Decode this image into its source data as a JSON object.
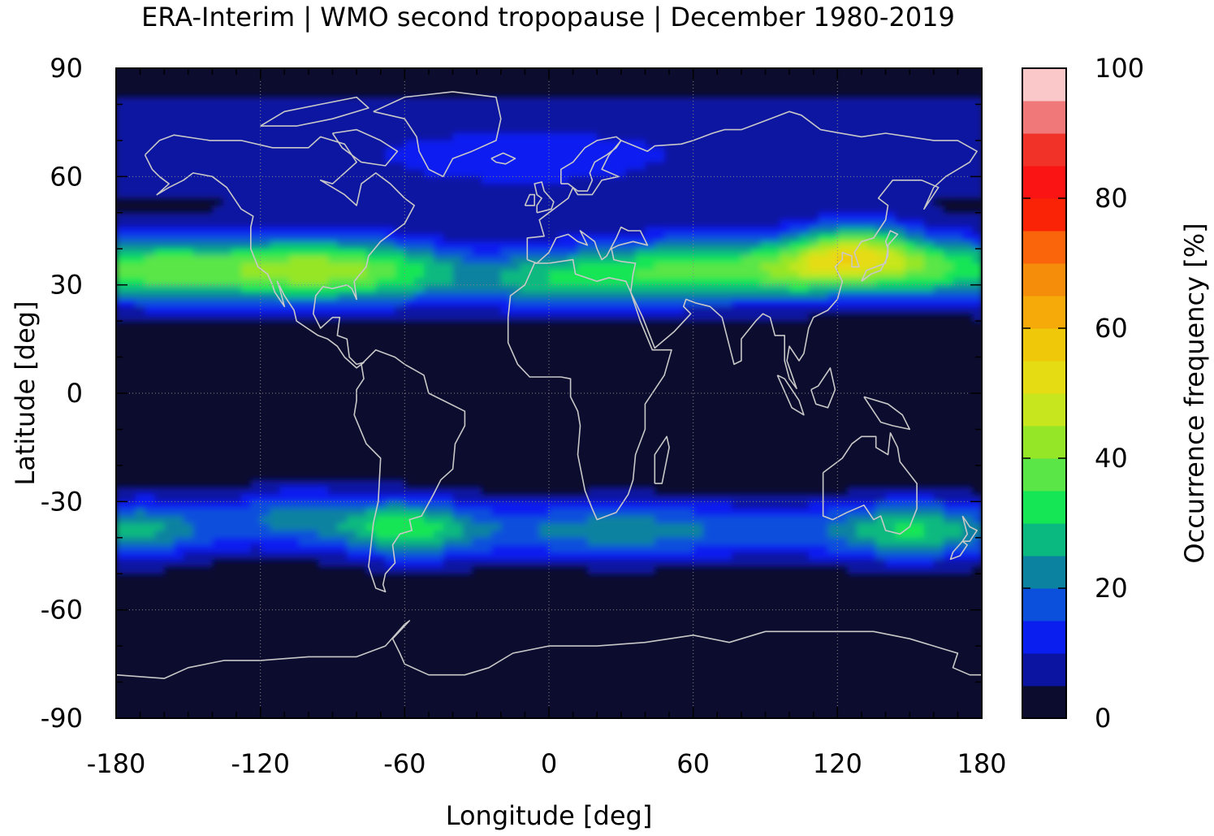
{
  "title": "ERA-Interim | WMO second tropopause | December 1980-2019",
  "x_axis": {
    "label": "Longitude [deg]",
    "range": [
      -180,
      180
    ],
    "ticks": [
      "-180",
      "-120",
      "-60",
      "0",
      "60",
      "120",
      "180"
    ],
    "tick_values": [
      -180,
      -120,
      -60,
      0,
      60,
      120,
      180
    ],
    "minor_step": 10
  },
  "y_axis": {
    "label": "Latitude [deg]",
    "range": [
      -90,
      90
    ],
    "ticks": [
      "90",
      "60",
      "30",
      "0",
      "-30",
      "-60",
      "-90"
    ],
    "tick_values": [
      90,
      60,
      30,
      0,
      -30,
      -60,
      -90
    ],
    "minor_step": 10
  },
  "colorbar": {
    "label": "Occurrence frequency [%]",
    "range": [
      0,
      100
    ],
    "ticks": [
      "0",
      "20",
      "40",
      "60",
      "80",
      "100"
    ],
    "tick_values": [
      0,
      20,
      40,
      60,
      80,
      100
    ],
    "levels": [
      "#0c0c2e",
      "#0a14a0",
      "#0a1ef0",
      "#0a50dc",
      "#0a82a0",
      "#0ab97f",
      "#14e655",
      "#5ae646",
      "#96e628",
      "#c8e61e",
      "#e6dc14",
      "#f0c80a",
      "#f5aa0a",
      "#f58c0a",
      "#fa640a",
      "#fa2305",
      "#fa1414",
      "#f03228",
      "#f07878",
      "#fac8c8"
    ]
  },
  "colors": {
    "background": "#0c0c2e",
    "coastline": "#c8c8c8",
    "frame": "#000000"
  },
  "chart_data": {
    "type": "heatmap",
    "title": "ERA-Interim | WMO second tropopause | December 1980-2019",
    "xlabel": "Longitude [deg]",
    "ylabel": "Latitude [deg]",
    "xlim": [
      -180,
      180
    ],
    "ylim": [
      -90,
      90
    ],
    "value_range": [
      0,
      100
    ],
    "value_label": "Occurrence frequency [%]",
    "description_fields": [
      "lon",
      "lat",
      "value"
    ],
    "features": [
      {
        "name": "NH subtropical band",
        "lon_range": [
          -180,
          180
        ],
        "lat_range": [
          25,
          50
        ],
        "peak_value": 50,
        "peak_lon": 120,
        "peak_lat": 35
      },
      {
        "name": "NH Pacific/America maximum",
        "lon": -100,
        "lat": 35,
        "value": 42
      },
      {
        "name": "NH Atlantic",
        "lon": -40,
        "lat": 35,
        "value": 30
      },
      {
        "name": "NH Africa/Asia",
        "lon": 40,
        "lat": 32,
        "value": 28
      },
      {
        "name": "SH subtropical band",
        "lon_range": [
          -180,
          180
        ],
        "lat_range": [
          -52,
          -28
        ],
        "peak_value": 35,
        "peak_lon": -60,
        "peak_lat": -38
      },
      {
        "name": "SH South America maximum",
        "lon": -60,
        "lat": -38,
        "value": 35
      },
      {
        "name": "SH Australia",
        "lon": 150,
        "lat": -36,
        "value": 30
      },
      {
        "name": "Arctic",
        "lon_range": [
          -180,
          180
        ],
        "lat_range": [
          50,
          90
        ],
        "value": 8
      },
      {
        "name": "Tropics",
        "lon_range": [
          -180,
          180
        ],
        "lat_range": [
          -25,
          22
        ],
        "value": 2
      },
      {
        "name": "Antarctic",
        "lon_range": [
          -180,
          180
        ],
        "lat_range": [
          -90,
          -55
        ],
        "value": 2
      }
    ]
  }
}
